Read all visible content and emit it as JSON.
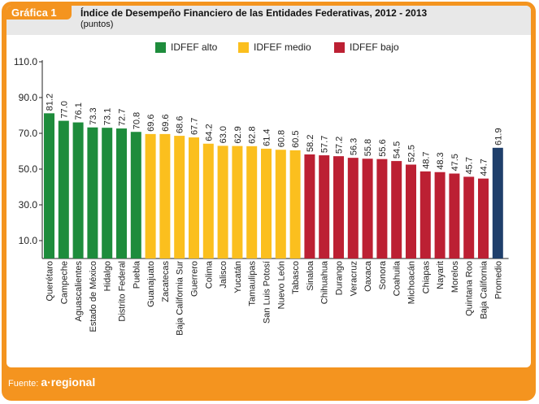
{
  "header": {
    "badge": "Gráfica 1",
    "title": "Índice de Desempeño Financiero de las Entidades Federativas, 2012 - 2013",
    "subtitle": "(puntos)"
  },
  "footer": {
    "source_label": "Fuente:",
    "brand": "a·regional"
  },
  "colors": {
    "alto": "#1e8c3c",
    "medio": "#fbbf1e",
    "bajo": "#bc2033",
    "promedio": "#1f3f6b",
    "frame": "#f4941f"
  },
  "chart_data": {
    "type": "bar",
    "title": "Índice de Desempeño Financiero de las Entidades Federativas, 2012 - 2013",
    "subtitle": "(puntos)",
    "ylim": [
      0,
      110
    ],
    "yticks": [
      "10.0",
      "30.0",
      "50.0",
      "70.0",
      "90.0",
      "110.0"
    ],
    "grid": false,
    "legend": [
      {
        "key": "alto",
        "label": "IDFEF alto"
      },
      {
        "key": "medio",
        "label": "IDFEF medio"
      },
      {
        "key": "bajo",
        "label": "IDFEF bajo"
      }
    ],
    "categories": [
      "Querétaro",
      "Campeche",
      "Aguascalientes",
      "Estado de México",
      "Hidalgo",
      "Distrito Federal",
      "Puebla",
      "Guanajuato",
      "Zacatecas",
      "Baja California Sur",
      "Guerrero",
      "Colima",
      "Jalisco",
      "Yucatán",
      "Tamaulipas",
      "San Luis Potosí",
      "Nuevo León",
      "Tabasco",
      "Sinaloa",
      "Chihuahua",
      "Durango",
      "Veracruz",
      "Oaxaca",
      "Sonora",
      "Coahuila",
      "Michoacán",
      "Chiapas",
      "Nayarit",
      "Morelos",
      "Quintana Roo",
      "Baja California",
      "Promedio"
    ],
    "values": [
      81.2,
      77.0,
      76.1,
      73.3,
      73.1,
      72.7,
      70.8,
      69.6,
      69.6,
      68.6,
      67.7,
      64.2,
      63.0,
      62.9,
      62.8,
      61.4,
      60.8,
      60.5,
      58.2,
      57.7,
      57.2,
      56.3,
      55.8,
      55.6,
      54.5,
      52.5,
      48.7,
      48.3,
      47.5,
      45.7,
      44.7,
      61.9
    ],
    "value_labels": [
      "81.2",
      "77.0",
      "76.1",
      "73.3",
      "73.1",
      "72.7",
      "70.8",
      "69.6",
      "69.6",
      "68.6",
      "67.7",
      "64.2",
      "63.0",
      "62.9",
      "62.8",
      "61.4",
      "60.8",
      "60.5",
      "58.2",
      "57.7",
      "57.2",
      "56.3",
      "55.8",
      "55.6",
      "54.5",
      "52.5",
      "48.7",
      "48.3",
      "47.5",
      "45.7",
      "44.7",
      "61.9"
    ],
    "groups": [
      "alto",
      "alto",
      "alto",
      "alto",
      "alto",
      "alto",
      "alto",
      "medio",
      "medio",
      "medio",
      "medio",
      "medio",
      "medio",
      "medio",
      "medio",
      "medio",
      "medio",
      "medio",
      "bajo",
      "bajo",
      "bajo",
      "bajo",
      "bajo",
      "bajo",
      "bajo",
      "bajo",
      "bajo",
      "bajo",
      "bajo",
      "bajo",
      "bajo",
      "promedio"
    ]
  }
}
